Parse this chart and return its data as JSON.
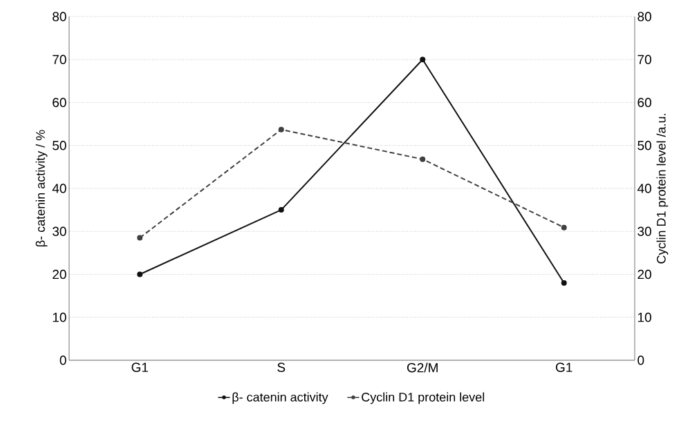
{
  "chart_data": {
    "type": "line",
    "categories": [
      "G1",
      "S",
      "G2/M",
      "G1"
    ],
    "ylabel": "β- catenin activity / %",
    "y2label": "Cyclin D1 protein level /a.u.",
    "ylim": [
      0,
      80
    ],
    "yticks": [
      0,
      10,
      20,
      30,
      40,
      50,
      60,
      70,
      80
    ],
    "y2lim": [
      0,
      80
    ],
    "y2ticks": [
      0,
      10,
      20,
      30,
      40,
      50,
      60,
      70,
      80
    ],
    "grid": "y",
    "legend": "bottom",
    "marker": "circle",
    "series": [
      {
        "name": "β- catenin activity",
        "color": "#111111",
        "line_style": "solid",
        "values": [
          20,
          35,
          70,
          18
        ]
      },
      {
        "name": "Cyclin D1 protein level",
        "color": "#404040",
        "line_style": "dashed",
        "axis": "y2",
        "values": [
          28.5,
          53.7,
          46.8,
          30.9
        ]
      }
    ]
  }
}
